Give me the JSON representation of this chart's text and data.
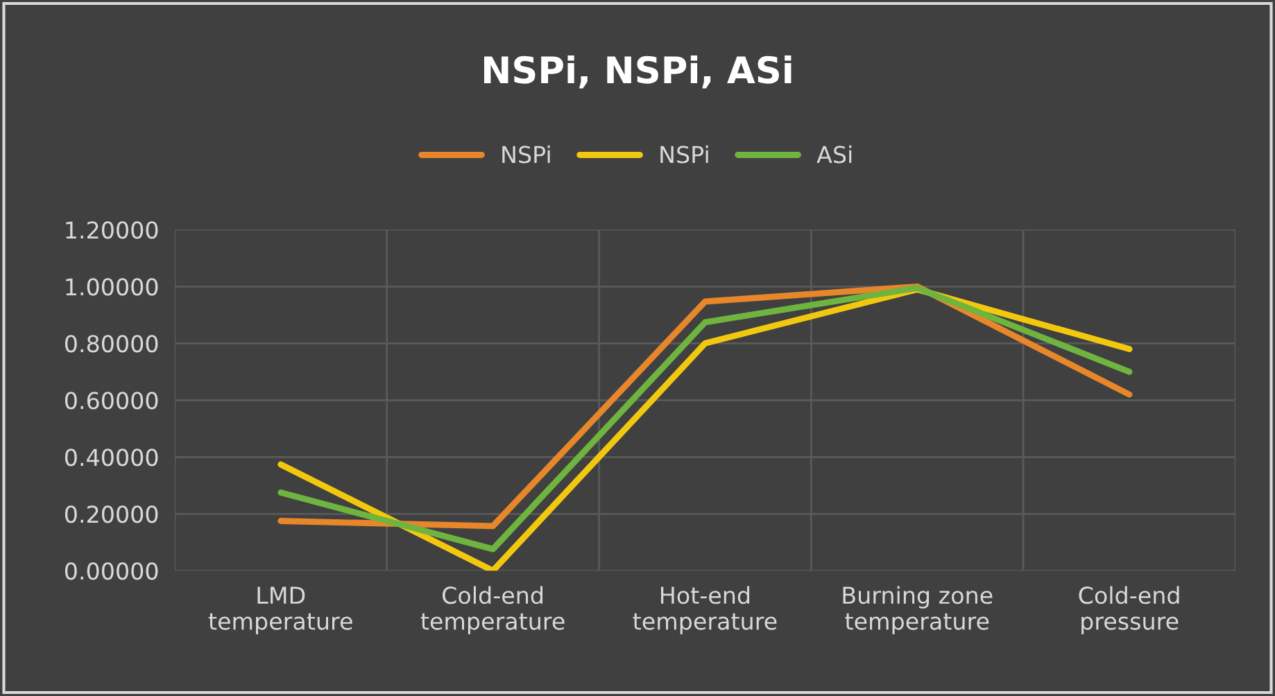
{
  "chart_data": {
    "type": "line",
    "title": "NSPi, NSPi, ASi",
    "categories": [
      "LMD\ntemperature",
      "Cold-end\ntemperature",
      "Hot-end\ntemperature",
      "Burning zone\ntemperature",
      "Cold-end\npressure"
    ],
    "series": [
      {
        "name": "NSPi",
        "color": "#e8862a",
        "values": [
          0.175,
          0.157,
          0.947,
          1.0,
          0.62
        ]
      },
      {
        "name": "NSPi",
        "color": "#f2c80f",
        "values": [
          0.374,
          0.0,
          0.8,
          0.99,
          0.78
        ]
      },
      {
        "name": "ASi",
        "color": "#6fb43f",
        "values": [
          0.275,
          0.076,
          0.874,
          0.995,
          0.7
        ]
      }
    ],
    "ylim": [
      0,
      1.2
    ],
    "yticks": [
      {
        "value": 0,
        "label": "0.00000"
      },
      {
        "value": 0.2,
        "label": "0.20000"
      },
      {
        "value": 0.4,
        "label": "0.40000"
      },
      {
        "value": 0.6,
        "label": "0.60000"
      },
      {
        "value": 0.8,
        "label": "0.80000"
      },
      {
        "value": 1.0,
        "label": "1.00000"
      },
      {
        "value": 1.2,
        "label": "1.20000"
      }
    ],
    "grid": true,
    "legend": "top",
    "marker": "none",
    "line_style": "solid"
  }
}
